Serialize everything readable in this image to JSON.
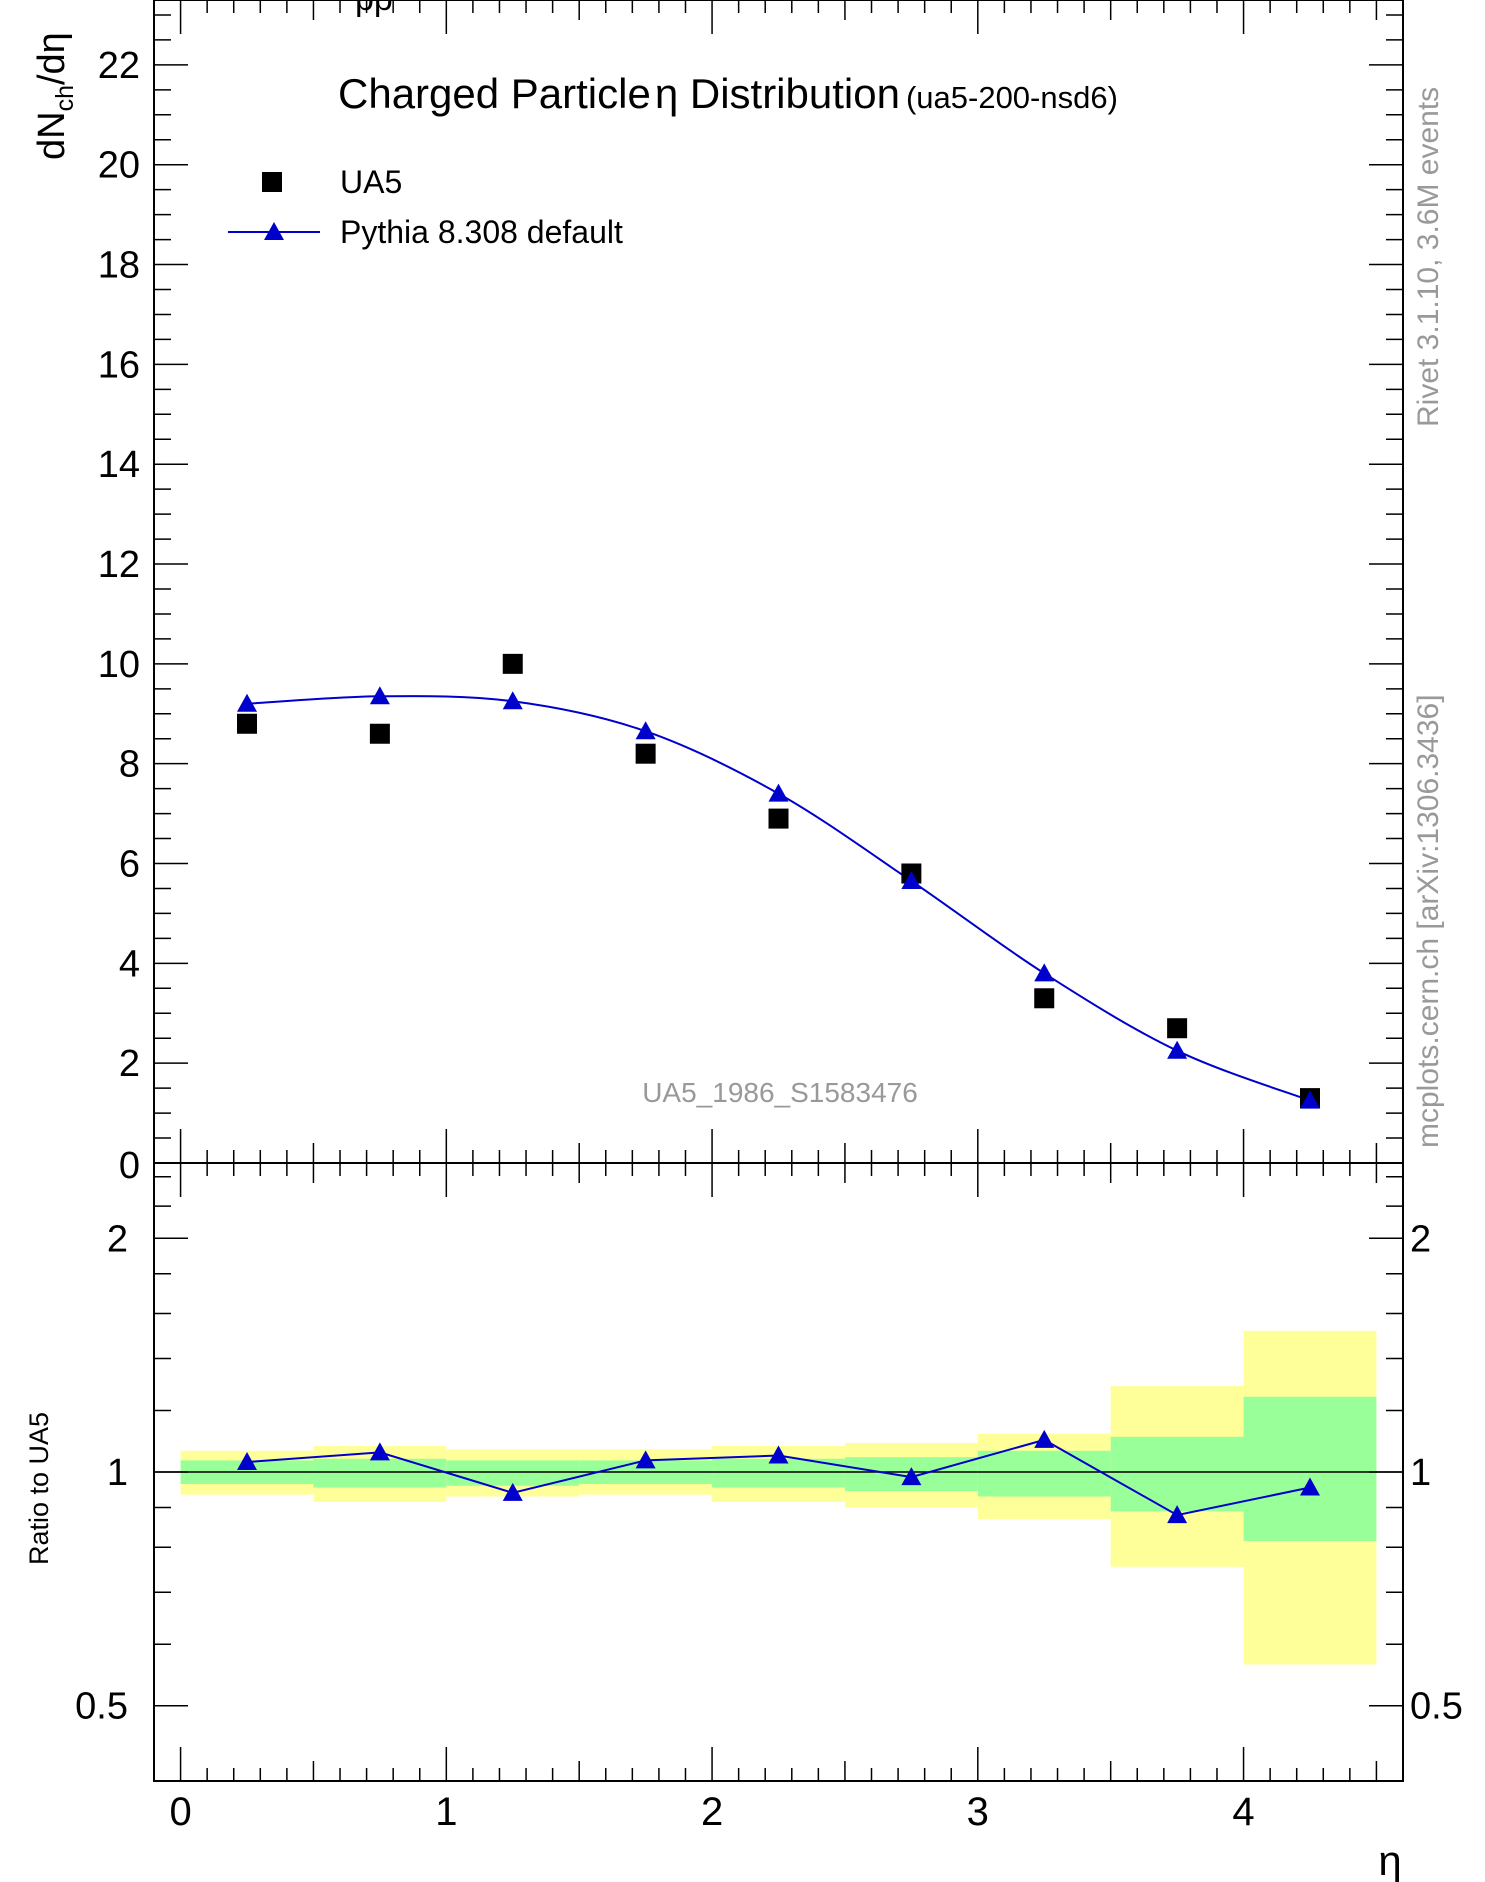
{
  "chart_data": [
    {
      "type": "scatter",
      "panel": "main",
      "title": "Charged Particle",
      "title_symbol": "η",
      "title_main_rest": " Distribution",
      "subtitle": "(ua5-200-nsd6)",
      "top_cut_text": "pp",
      "ylabel": "dN",
      "ylabel_sub": "ch",
      "ylabel_rest": "/dη",
      "analysis_id": "UA5_1986_S1583476",
      "right_label_top": "Rivet 3.1.10,  3.6M events",
      "right_label_bottom": "mcplots.cern.ch [arXiv:1306.3436]",
      "xlim": [
        -0.1,
        4.6
      ],
      "ylim": [
        0,
        23.3
      ],
      "y_ticks": [
        2,
        4,
        6,
        8,
        10,
        12,
        14,
        16,
        18,
        20,
        22
      ],
      "y_tick_labels": [
        "2",
        "4",
        "6",
        "8",
        "10",
        "12",
        "14",
        "16",
        "18",
        "20",
        "22"
      ],
      "cut_tick_label": "0",
      "legend_position": "top-left",
      "series": [
        {
          "name": "UA5",
          "marker": "square",
          "color": "#000000",
          "x": [
            0.25,
            0.75,
            1.25,
            1.75,
            2.25,
            2.75,
            3.25,
            3.75,
            4.25
          ],
          "y": [
            8.8,
            8.6,
            10.0,
            8.2,
            6.9,
            5.8,
            3.3,
            2.7,
            1.3
          ]
        },
        {
          "name": "Pythia 8.308 default",
          "marker": "triangle",
          "color": "#0000cc",
          "x": [
            0.25,
            0.75,
            1.25,
            1.75,
            2.25,
            2.75,
            3.25,
            3.75,
            4.25
          ],
          "y": [
            9.2,
            9.35,
            9.25,
            8.65,
            7.4,
            5.65,
            3.8,
            2.25,
            1.25
          ]
        }
      ]
    },
    {
      "type": "line",
      "panel": "ratio",
      "xlabel": "η",
      "ylabel": "Ratio to UA5",
      "xlim": [
        -0.1,
        4.6
      ],
      "ylim": [
        0.4,
        2.5
      ],
      "log_y": true,
      "x_ticks": [
        0,
        1,
        2,
        3,
        4
      ],
      "x_tick_labels": [
        "0",
        "1",
        "2",
        "3",
        "4"
      ],
      "y_ticks": [
        0.5,
        1,
        2
      ],
      "y_tick_labels": [
        "0.5",
        "1",
        "2"
      ],
      "bands": {
        "bin_edges": [
          0,
          0.5,
          1,
          1.5,
          2,
          2.5,
          3,
          3.5,
          4,
          4.5
        ],
        "yellow_color": "#ffff99",
        "green_color": "#99ff99",
        "yellow_low": [
          0.935,
          0.915,
          0.93,
          0.935,
          0.915,
          0.9,
          0.87,
          0.755,
          0.565
        ],
        "yellow_high": [
          1.065,
          1.08,
          1.07,
          1.07,
          1.08,
          1.09,
          1.12,
          1.29,
          1.52
        ],
        "green_low": [
          0.965,
          0.955,
          0.96,
          0.965,
          0.955,
          0.945,
          0.93,
          0.89,
          0.815
        ],
        "green_high": [
          1.035,
          1.04,
          1.035,
          1.035,
          1.04,
          1.045,
          1.065,
          1.11,
          1.25
        ]
      },
      "series": [
        {
          "name": "Pythia 8.308 default",
          "color": "#0000cc",
          "x": [
            0.25,
            0.75,
            1.25,
            1.75,
            2.25,
            2.75,
            3.25,
            3.75,
            4.25
          ],
          "y": [
            1.03,
            1.06,
            0.94,
            1.035,
            1.05,
            0.985,
            1.1,
            0.88,
            0.955
          ]
        }
      ]
    }
  ]
}
